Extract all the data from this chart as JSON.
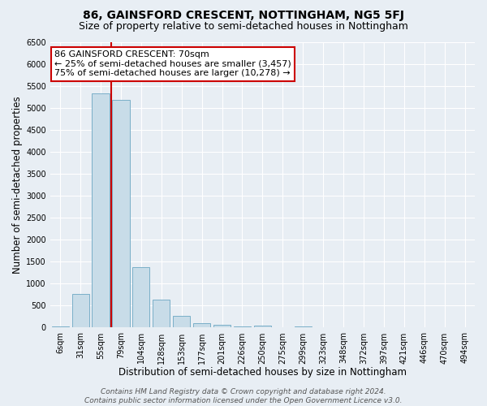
{
  "title": "86, GAINSFORD CRESCENT, NOTTINGHAM, NG5 5FJ",
  "subtitle": "Size of property relative to semi-detached houses in Nottingham",
  "xlabel": "Distribution of semi-detached houses by size in Nottingham",
  "ylabel": "Number of semi-detached properties",
  "bar_color": "#c8dce8",
  "bar_edge_color": "#7aafc8",
  "categories": [
    "6sqm",
    "31sqm",
    "55sqm",
    "79sqm",
    "104sqm",
    "128sqm",
    "153sqm",
    "177sqm",
    "201sqm",
    "226sqm",
    "250sqm",
    "275sqm",
    "299sqm",
    "323sqm",
    "348sqm",
    "372sqm",
    "397sqm",
    "421sqm",
    "446sqm",
    "470sqm",
    "494sqm"
  ],
  "values": [
    30,
    760,
    5320,
    5180,
    1380,
    630,
    260,
    110,
    55,
    25,
    50,
    0,
    30,
    0,
    0,
    0,
    0,
    0,
    0,
    0,
    0
  ],
  "ylim": [
    0,
    6500
  ],
  "yticks": [
    0,
    500,
    1000,
    1500,
    2000,
    2500,
    3000,
    3500,
    4000,
    4500,
    5000,
    5500,
    6000,
    6500
  ],
  "annotation_title": "86 GAINSFORD CRESCENT: 70sqm",
  "annotation_line1": "← 25% of semi-detached houses are smaller (3,457)",
  "annotation_line2": "75% of semi-detached houses are larger (10,278) →",
  "annotation_box_color": "#ffffff",
  "annotation_box_edge": "#cc0000",
  "vline_color": "#cc0000",
  "vline_pos": 2.5,
  "footer1": "Contains HM Land Registry data © Crown copyright and database right 2024.",
  "footer2": "Contains public sector information licensed under the Open Government Licence v3.0.",
  "background_color": "#e8eef4",
  "plot_background": "#e8eef4",
  "grid_color": "#ffffff",
  "title_fontsize": 10,
  "subtitle_fontsize": 9,
  "axis_label_fontsize": 8.5,
  "tick_fontsize": 7,
  "annotation_fontsize": 8,
  "footer_fontsize": 6.5
}
